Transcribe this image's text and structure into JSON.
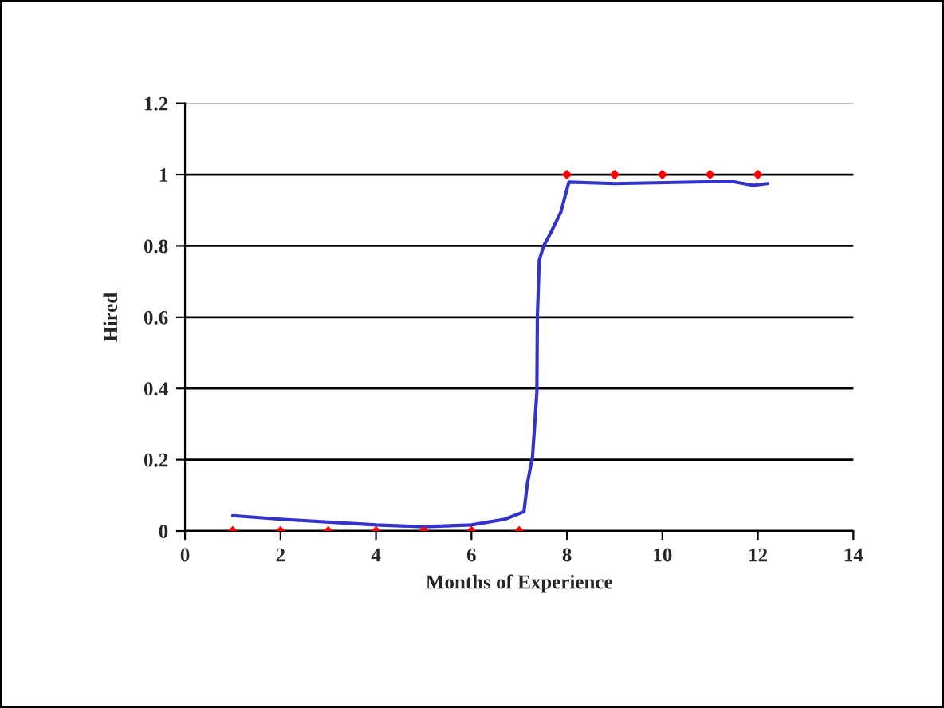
{
  "chart_data": {
    "type": "scatter",
    "xlabel": "Months of Experience",
    "ylabel": "Hired",
    "xlim": [
      0,
      14
    ],
    "xticks": [
      0,
      2,
      4,
      6,
      8,
      10,
      12,
      14
    ],
    "ylim": [
      0,
      1.2
    ],
    "yticks": [
      0,
      0.2,
      0.4,
      0.6,
      0.8,
      1,
      1.2
    ],
    "grid": "y",
    "legend": false,
    "series": [
      {
        "color": "#ff0000",
        "marker": "diamond",
        "x": [
          1,
          2,
          3,
          4,
          5,
          6,
          7,
          8,
          9,
          10,
          11,
          12
        ],
        "values": [
          0,
          0,
          0,
          0,
          0,
          0,
          0,
          1,
          1,
          1,
          1,
          1
        ]
      },
      {
        "type": "line",
        "color": "#3333cc",
        "marker": "none",
        "line_style": "solid",
        "x": [
          1,
          2,
          4,
          5,
          6,
          6.7,
          7.1,
          7.17,
          7.28,
          7.37,
          7.38,
          7.42,
          7.51,
          7.65,
          7.87,
          8.04,
          9,
          10.9,
          11.5,
          11.9,
          12.2
        ],
        "values": [
          0.043,
          0.033,
          0.017,
          0.012,
          0.017,
          0.033,
          0.054,
          0.133,
          0.21,
          0.39,
          0.6,
          0.76,
          0.8,
          0.834,
          0.894,
          0.979,
          0.975,
          0.98,
          0.98,
          0.97,
          0.975
        ]
      }
    ]
  }
}
